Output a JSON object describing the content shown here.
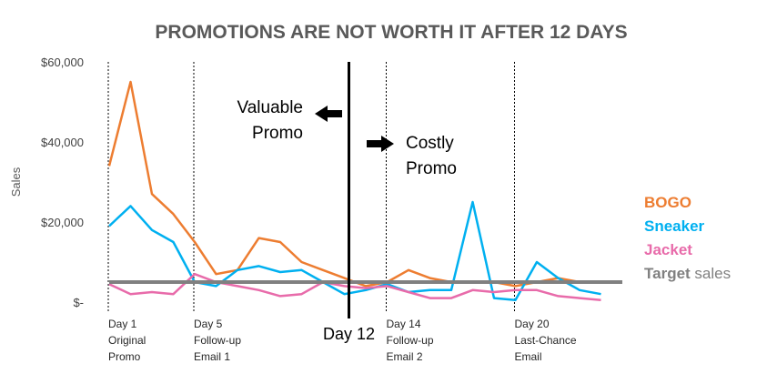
{
  "chart_data": {
    "type": "line",
    "title": "PROMOTIONS ARE NOT WORTH IT AFTER 12 DAYS",
    "xlabel": "",
    "ylabel": "Sales",
    "ylim": [
      0,
      60000
    ],
    "yticks": [
      "$-",
      "$20,000",
      "$40,000",
      "$60,000"
    ],
    "ytick_values": [
      0,
      20000,
      40000,
      60000
    ],
    "x": [
      1,
      2,
      3,
      4,
      5,
      6,
      7,
      8,
      9,
      10,
      11,
      12,
      13,
      14,
      15,
      16,
      17,
      18,
      19,
      20,
      21,
      22,
      23,
      24,
      25
    ],
    "series": [
      {
        "name": "BOGO",
        "color": "#ED7D31",
        "values": [
          34000,
          55000,
          27000,
          22000,
          15000,
          7000,
          8000,
          16000,
          15000,
          10000,
          8000,
          6000,
          4000,
          5000,
          8000,
          6000,
          5000,
          5000,
          5000,
          4000,
          5000,
          6000,
          5000,
          null,
          null
        ]
      },
      {
        "name": "Sneaker",
        "color": "#00B0F0",
        "values": [
          19000,
          24000,
          18000,
          15000,
          5000,
          4000,
          8000,
          9000,
          7500,
          8000,
          5000,
          2000,
          3000,
          4500,
          2500,
          3000,
          3000,
          25000,
          1000,
          500,
          10000,
          6000,
          3000,
          2000,
          null
        ]
      },
      {
        "name": "Jacket",
        "color": "#E86BAA",
        "values": [
          4500,
          2000,
          2500,
          2000,
          7000,
          5000,
          4000,
          3000,
          1500,
          2000,
          5000,
          4000,
          3500,
          4000,
          2500,
          1000,
          1000,
          3000,
          2500,
          3000,
          3000,
          1500,
          1000,
          500,
          null
        ]
      },
      {
        "name": "Target sales",
        "color": "#808080",
        "values": [
          5000,
          5000,
          5000,
          5000,
          5000,
          5000,
          5000,
          5000,
          5000,
          5000,
          5000,
          5000,
          5000,
          5000,
          5000,
          5000,
          5000,
          5000,
          5000,
          5000,
          5000,
          5000,
          5000,
          5000,
          5000
        ]
      }
    ],
    "events": [
      {
        "day": 1,
        "lines": [
          "Day 1",
          "Original",
          "Promo"
        ]
      },
      {
        "day": 5,
        "lines": [
          "Day 5",
          "Follow-up",
          "Email 1"
        ]
      },
      {
        "day": 14,
        "lines": [
          "Day 14",
          "Follow-up",
          "Email 2"
        ]
      },
      {
        "day": 20,
        "lines": [
          "Day 20",
          "Last-Chance",
          "Email"
        ]
      }
    ],
    "threshold": {
      "day": 12,
      "label": "Day 12"
    },
    "annotations": {
      "left": [
        "Valuable",
        "Promo"
      ],
      "right": [
        "Costly",
        "Promo"
      ]
    },
    "legend": {
      "placement": "right",
      "items": [
        {
          "label": "BOGO",
          "color": "#ED7D31",
          "bold": true
        },
        {
          "label": "Sneaker",
          "color": "#00B0F0",
          "bold": true
        },
        {
          "label": "Jacket",
          "color": "#E86BAA",
          "bold": true
        },
        {
          "bold_part": "Target",
          "normal_part": " sales",
          "color": "#808080"
        }
      ]
    },
    "grid": false
  }
}
